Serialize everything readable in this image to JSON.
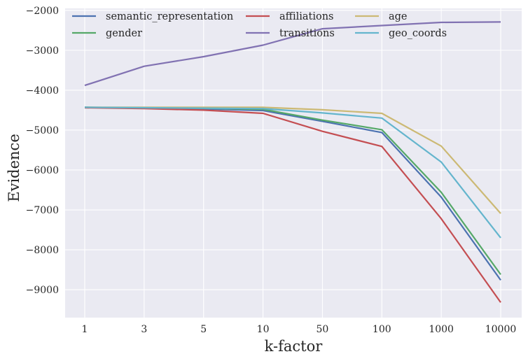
{
  "chart_data": {
    "type": "line",
    "xlabel": "k-factor",
    "ylabel": "Evidence",
    "categories": [
      "1",
      "3",
      "5",
      "10",
      "50",
      "100",
      "1000",
      "10000"
    ],
    "ylim": [
      -9700,
      -1950
    ],
    "yticks": [
      -9000,
      -8000,
      -7000,
      -6000,
      -5000,
      -4000,
      -3000,
      -2000
    ],
    "ytick_labels": [
      "−9000",
      "−8000",
      "−7000",
      "−6000",
      "−5000",
      "−4000",
      "−3000",
      "−2000"
    ],
    "grid": true,
    "legend_placement": "top",
    "background_color": "#EAEAF2",
    "series": [
      {
        "name": "semantic_representation",
        "color": "#4C72B0",
        "values": [
          -4430,
          -4450,
          -4470,
          -4510,
          -4780,
          -5060,
          -6680,
          -8760
        ]
      },
      {
        "name": "gender",
        "color": "#55A868",
        "values": [
          -4430,
          -4440,
          -4450,
          -4480,
          -4750,
          -4990,
          -6560,
          -8620
        ]
      },
      {
        "name": "affiliations",
        "color": "#C44E52",
        "values": [
          -4440,
          -4460,
          -4500,
          -4580,
          -5030,
          -5410,
          -7220,
          -9320
        ]
      },
      {
        "name": "transitions",
        "color": "#8172B2",
        "values": [
          -3880,
          -3400,
          -3160,
          -2870,
          -2460,
          -2380,
          -2300,
          -2290
        ]
      },
      {
        "name": "age",
        "color": "#CCB974",
        "values": [
          -4430,
          -4430,
          -4430,
          -4430,
          -4490,
          -4580,
          -5400,
          -7090
        ]
      },
      {
        "name": "geo_coords",
        "color": "#64B5CD",
        "values": [
          -4430,
          -4440,
          -4450,
          -4460,
          -4570,
          -4700,
          -5800,
          -7700
        ]
      }
    ]
  }
}
